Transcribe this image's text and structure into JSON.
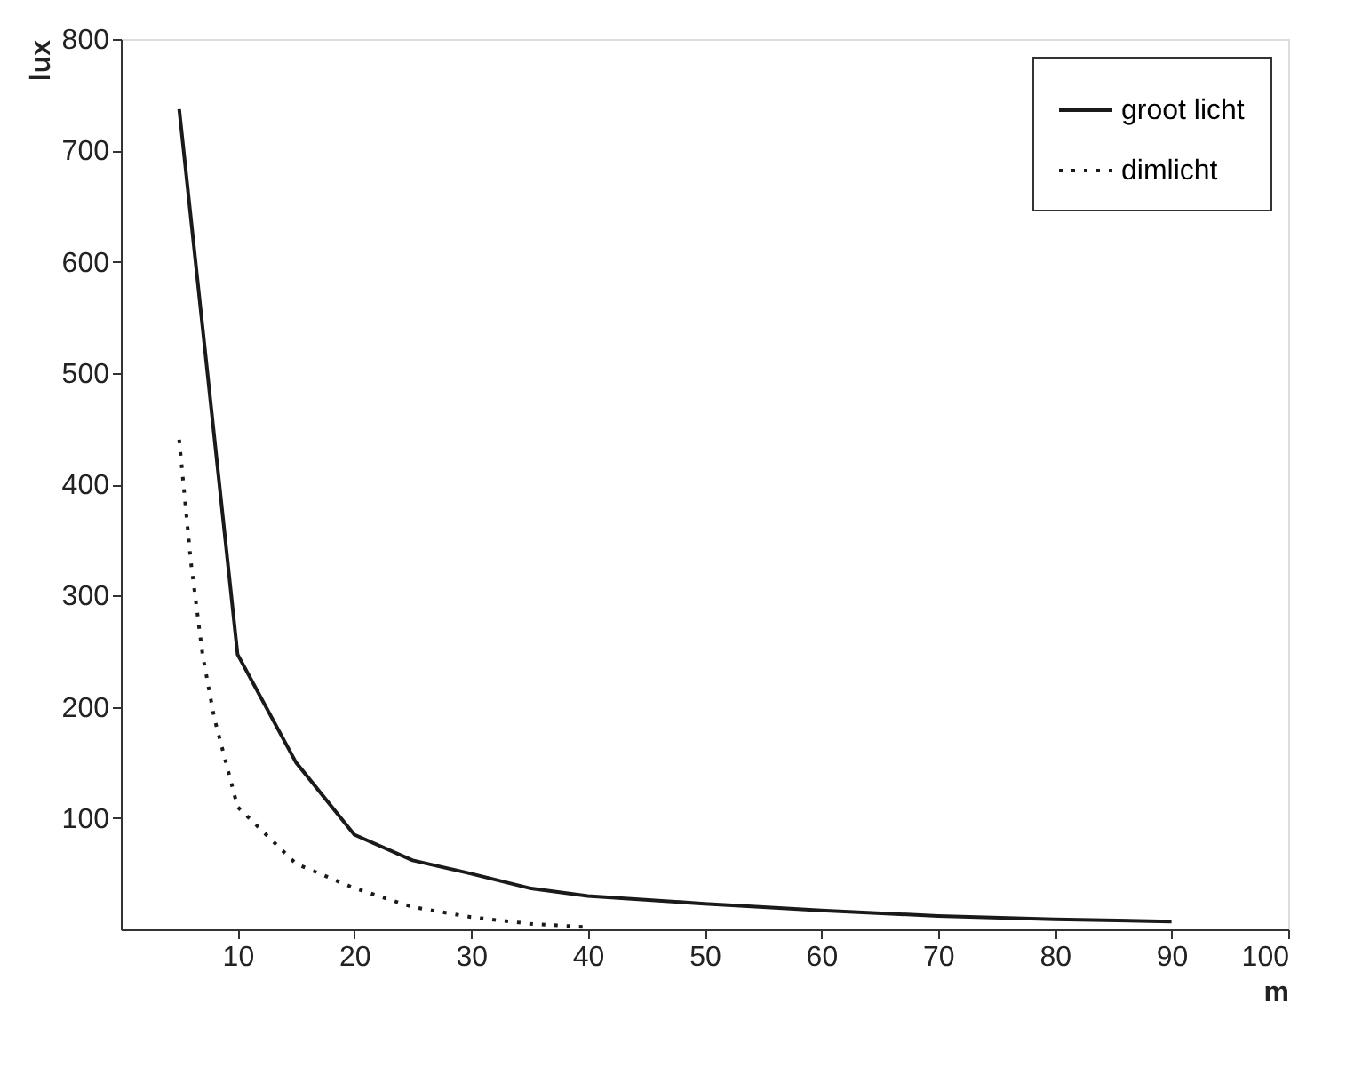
{
  "chart_data": {
    "type": "line",
    "xlabel": "m",
    "ylabel": "lux",
    "xlim": [
      0,
      100
    ],
    "xticks": [
      10,
      20,
      30,
      40,
      50,
      60,
      70,
      80,
      90,
      100
    ],
    "ylim": [
      0,
      800
    ],
    "yticks": [
      100,
      200,
      300,
      400,
      500,
      600,
      700,
      800
    ],
    "grid": false,
    "legend": "top right",
    "marker": "none",
    "series": [
      {
        "name": "groot licht",
        "color": "#1a1a1a",
        "line_style": "solid",
        "x": [
          5,
          10,
          15,
          20,
          25,
          30,
          35,
          40,
          50,
          60,
          70,
          80,
          90
        ],
        "values": [
          737,
          247,
          150,
          85,
          62,
          50,
          37,
          30,
          23,
          17,
          12,
          9,
          7
        ]
      },
      {
        "name": "dimlicht",
        "color": "#1a1a1a",
        "line_style": "dotted",
        "x": [
          5,
          6,
          7,
          8,
          10,
          15,
          20,
          25,
          30,
          35,
          40
        ],
        "values": [
          440,
          330,
          247,
          190,
          110,
          59,
          37,
          20,
          11,
          5,
          2
        ]
      }
    ]
  }
}
